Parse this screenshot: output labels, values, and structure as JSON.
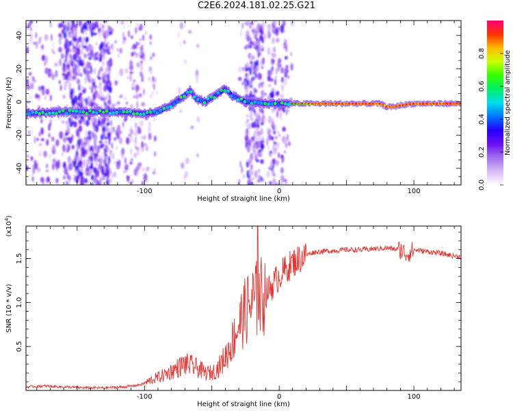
{
  "title": "C2E6.2024.181.02.25.G21",
  "colors": {
    "snr_line": "#e8322e",
    "colormap": [
      "#ffffff",
      "#d9b8f5",
      "#a070f0",
      "#6a10f0",
      "#2200ff",
      "#0077ff",
      "#00ddee",
      "#00ee66",
      "#33ff00",
      "#ccff00",
      "#ffbb00",
      "#ff3300",
      "#ff0077"
    ]
  },
  "chart_data": [
    {
      "type": "heatmap",
      "title": "",
      "xlabel": "Height of straight line (km)",
      "ylabel": "Frequency (Hz)",
      "xlim": [
        -188,
        135
      ],
      "ylim": [
        -50,
        49
      ],
      "xticks": [
        -100,
        0,
        100
      ],
      "yticks": [
        -40,
        -20,
        0,
        20,
        40
      ],
      "colorbar": {
        "label": "Normalized spectral amplitude",
        "range": [
          0.0,
          1.0
        ],
        "ticks": [
          "0.0",
          "0.2",
          "0.4",
          "0.6",
          "0.8"
        ]
      },
      "ridge": {
        "description_points_x_km": [
          -188,
          -160,
          -140,
          -120,
          -100,
          -90,
          -80,
          -70,
          -66,
          -62,
          -55,
          -45,
          -40,
          -35,
          -30,
          -25,
          -20,
          -10,
          0,
          8,
          20,
          40,
          60,
          75,
          80,
          85,
          90,
          100,
          110,
          135
        ],
        "frequency_hz": [
          -7,
          -6,
          -6,
          -6,
          -7,
          -6,
          -2,
          4,
          7,
          2,
          0,
          5,
          8,
          4,
          2,
          0,
          0,
          -1,
          -1,
          -1,
          -1,
          -1,
          -1,
          -1,
          -3,
          -3,
          -2,
          -1,
          -1,
          -1
        ]
      }
    },
    {
      "type": "line",
      "title": "",
      "xlabel": "Height of straight line (km)",
      "ylabel": "SNR (10 * v/v)",
      "yscale_label": "(x10",
      "yscale_exp": "4",
      "xlim": [
        -188,
        135
      ],
      "ylim": [
        0,
        1.87
      ],
      "xticks": [
        -100,
        0,
        100
      ],
      "yticks": [
        0.5,
        1.0,
        1.5
      ],
      "ytick_labels": [
        "0.5",
        "1.0",
        "1.5"
      ],
      "series": [
        {
          "x": [
            -188,
            -175,
            -160,
            -145,
            -130,
            -115,
            -105,
            -100,
            -95,
            -90,
            -85,
            -80,
            -75,
            -70,
            -65,
            -60,
            -55,
            -50,
            -45,
            -40,
            -35,
            -30,
            -25,
            -20,
            -15,
            -10,
            -5,
            0,
            5,
            10,
            15,
            20,
            25,
            30,
            40,
            50,
            60,
            70,
            80,
            90,
            95,
            100,
            110,
            120,
            130,
            135
          ],
          "y": [
            0.04,
            0.05,
            0.04,
            0.03,
            0.03,
            0.04,
            0.06,
            0.08,
            0.12,
            0.15,
            0.18,
            0.22,
            0.26,
            0.3,
            0.28,
            0.25,
            0.2,
            0.2,
            0.26,
            0.38,
            0.55,
            0.75,
            0.9,
            1.0,
            1.05,
            1.1,
            1.2,
            1.3,
            1.38,
            1.45,
            1.5,
            1.54,
            1.57,
            1.58,
            1.59,
            1.6,
            1.6,
            1.61,
            1.62,
            1.6,
            1.55,
            1.6,
            1.58,
            1.56,
            1.53,
            1.52
          ]
        }
      ]
    }
  ]
}
